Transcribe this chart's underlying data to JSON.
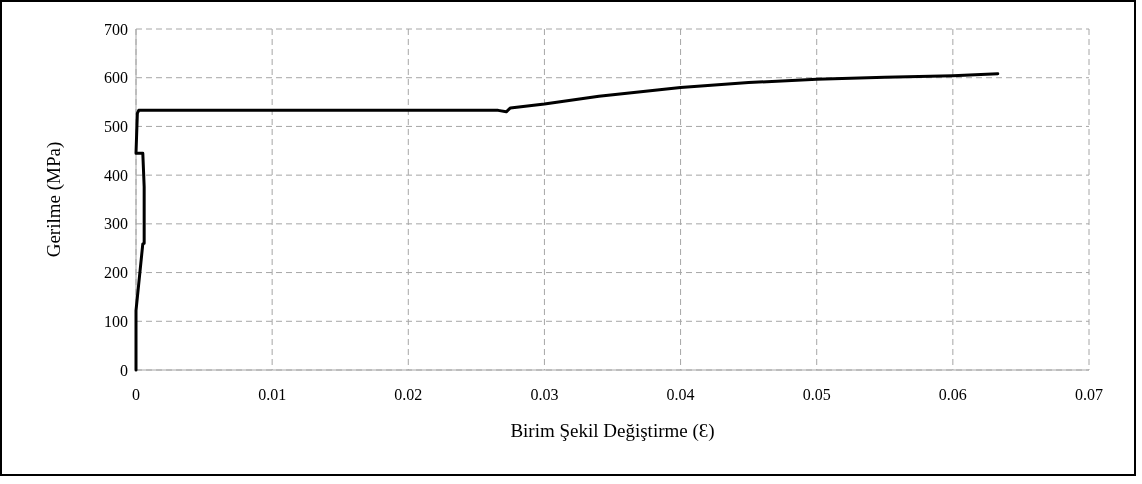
{
  "chart_data": {
    "type": "line",
    "xlabel": "Birim Şekil Değiştirme (Ɛ)",
    "ylabel": "Gerilme (MPa)",
    "xlim": [
      0,
      0.07
    ],
    "xticks": [
      0,
      0.01,
      0.02,
      0.03,
      0.04,
      0.05,
      0.06,
      0.07
    ],
    "ylim": [
      0,
      700
    ],
    "yticks": [
      0,
      100,
      200,
      300,
      400,
      500,
      600,
      700
    ],
    "grid": true,
    "marker": "none",
    "line_style": "solid",
    "series": [
      {
        "color": "#000000",
        "x": [
          0,
          0,
          0.0005,
          0.0006,
          0.0006,
          0.0005,
          0,
          0.0001,
          0.0002,
          0.0266,
          0.0272,
          0.0275,
          0.03,
          0.034,
          0.04,
          0.045,
          0.05,
          0.055,
          0.06,
          0.0633
        ],
        "values": [
          0,
          122,
          259,
          260,
          376,
          445,
          445,
          527,
          533,
          533,
          530,
          538,
          546,
          562,
          580,
          590,
          597,
          601,
          604,
          608
        ]
      }
    ]
  }
}
